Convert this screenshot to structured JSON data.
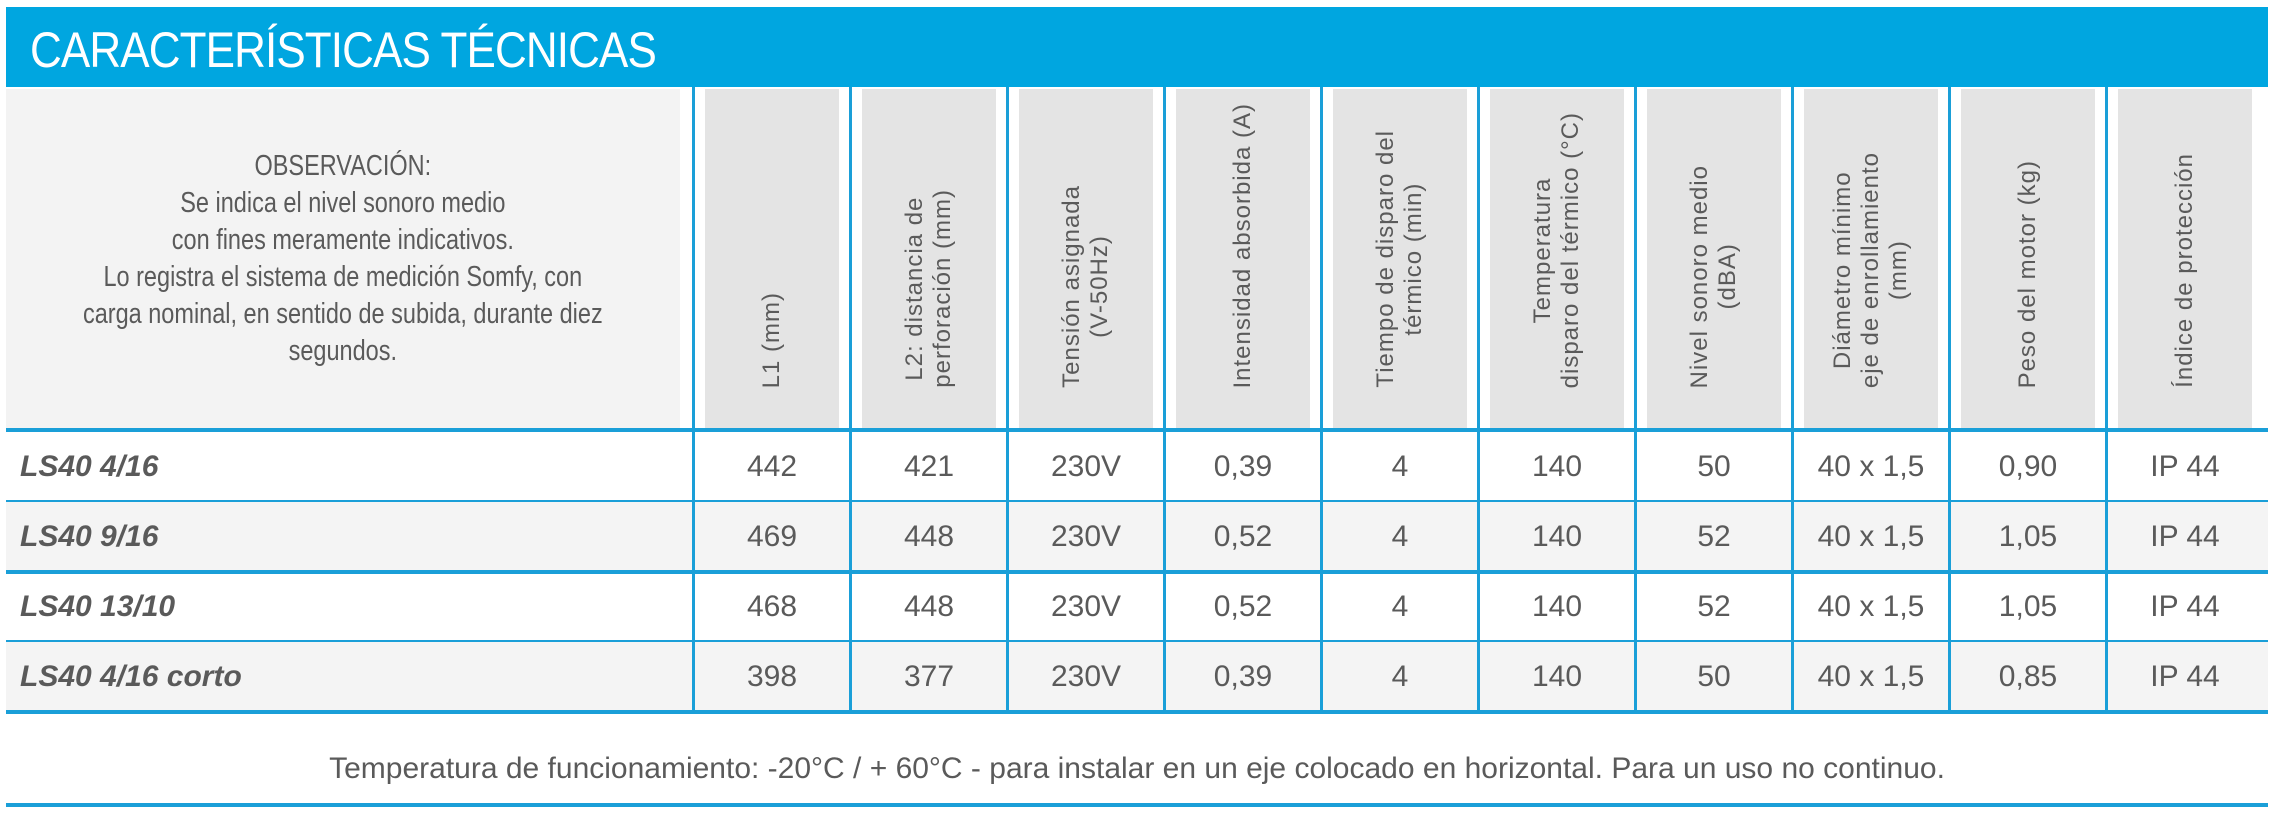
{
  "title": "CARACTERÍSTICAS TÉCNICAS",
  "observation": [
    "OBSERVACIÓN:",
    "Se indica el nivel sonoro medio",
    "con fines meramente indicativos.",
    "Lo registra el sistema de medición Somfy, con",
    "carga nominal, en sentido de subida, durante diez",
    "segundos."
  ],
  "columns": [
    "L1 (mm)",
    "L2: distancia de\nperforación (mm)",
    "Tensión asignada\n(V-50Hz)",
    "Intensidad absorbida (A)",
    "Tiempo de disparo del\ntérmico (min)",
    "Temperatura\ndisparo del térmico (°C)",
    "Nivel sonoro medio\n(dBA)",
    "Diámetro mínimo\neje de enrollamiento\n(mm)",
    "Peso del motor (kg)",
    "Índice de protección"
  ],
  "rows": [
    {
      "model": "LS40 4/16",
      "values": [
        "442",
        "421",
        "230V",
        "0,39",
        "4",
        "140",
        "50",
        "40 x 1,5",
        "0,90",
        "IP 44"
      ]
    },
    {
      "model": "LS40 9/16",
      "values": [
        "469",
        "448",
        "230V",
        "0,52",
        "4",
        "140",
        "52",
        "40 x 1,5",
        "1,05",
        "IP 44"
      ]
    },
    {
      "model": "LS40 13/10",
      "values": [
        "468",
        "448",
        "230V",
        "0,52",
        "4",
        "140",
        "52",
        "40 x 1,5",
        "1,05",
        "IP 44"
      ]
    },
    {
      "model": "LS40 4/16 corto",
      "values": [
        "398",
        "377",
        "230V",
        "0,39",
        "4",
        "140",
        "50",
        "40 x 1,5",
        "0,85",
        "IP 44"
      ]
    }
  ],
  "footer": "Temperatura de funcionamiento: -20°C / + 60°C - para instalar en un eje colocado en horizontal. Para un uso no continuo.",
  "colors": {
    "accent": "#00a6e0",
    "rule": "#1a9fd8",
    "header_cell": "#e4e4e4",
    "alt_row": "#f4f4f4",
    "text": "#5a5a5a"
  }
}
